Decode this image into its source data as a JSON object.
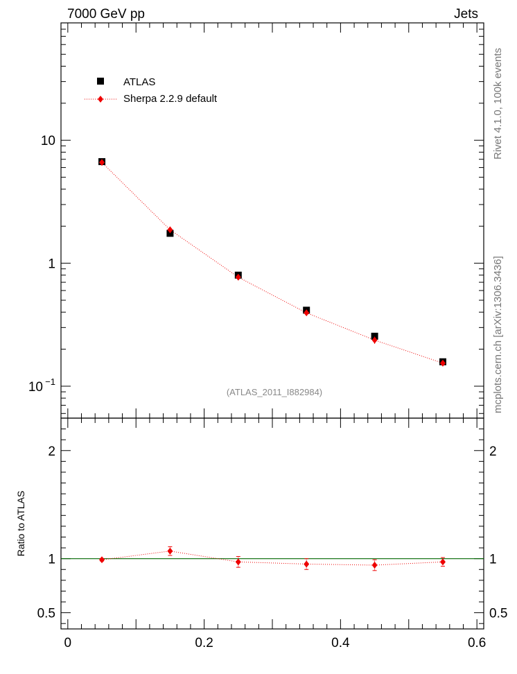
{
  "header": {
    "left": "7000 GeV pp",
    "right": "Jets"
  },
  "side_labels": {
    "rivet": "Rivet 4.1.0,  100k events",
    "mcplots": "mcplots.cern.ch [arXiv:1306.3436]"
  },
  "analysis_label": "(ATLAS_2011_I882984)",
  "colors": {
    "data": "#000000",
    "mc": "#ee0000",
    "refline": "#006600"
  },
  "chart_data": [
    {
      "type": "scatter",
      "panel": "main",
      "yscale": "log",
      "xlim": [
        -0.01,
        0.61
      ],
      "ylim": [
        0.055,
        90
      ],
      "x_ticks": [
        0,
        0.2,
        0.4,
        0.6
      ],
      "y_tick_labels": [
        {
          "value": 10,
          "label": "10"
        },
        {
          "value": 1,
          "label": "1"
        },
        {
          "value": 0.1,
          "label": "10",
          "sup": "−1"
        }
      ],
      "legend": {
        "position": "top-left",
        "entries": [
          "ATLAS",
          "Sherpa 2.2.9 default"
        ]
      },
      "series": [
        {
          "name": "ATLAS",
          "marker": "square",
          "x": [
            0.05,
            0.15,
            0.25,
            0.35,
            0.45,
            0.55
          ],
          "y": [
            6.7,
            1.75,
            0.8,
            0.415,
            0.255,
            0.158
          ]
        },
        {
          "name": "Sherpa 2.2.9 default",
          "marker": "diamond",
          "line": "dotted",
          "x": [
            0.05,
            0.15,
            0.25,
            0.35,
            0.45,
            0.55
          ],
          "y": [
            6.6,
            1.87,
            0.77,
            0.395,
            0.237,
            0.154
          ],
          "yerr": [
            0.07,
            0.04,
            0.035,
            0.02,
            0.016,
            0.006
          ]
        }
      ]
    },
    {
      "type": "scatter",
      "panel": "ratio",
      "ylabel": "Ratio to ATLAS",
      "xlim": [
        -0.01,
        0.61
      ],
      "ylim": [
        0.35,
        2.3
      ],
      "y_ticks": [
        {
          "value": 2,
          "label": "2"
        },
        {
          "value": 1,
          "label": "1"
        },
        {
          "value": 0.5,
          "label": "0.5"
        }
      ],
      "x_ticks": [
        {
          "value": 0,
          "label": "0"
        },
        {
          "value": 0.2,
          "label": "0.2"
        },
        {
          "value": 0.4,
          "label": "0.4"
        },
        {
          "value": 0.6,
          "label": "0.6"
        }
      ],
      "reference": 1.0,
      "series": [
        {
          "name": "Sherpa 2.2.9 default",
          "marker": "diamond",
          "line": "dotted",
          "x": [
            0.05,
            0.15,
            0.25,
            0.35,
            0.45,
            0.55
          ],
          "y": [
            0.99,
            1.07,
            0.97,
            0.95,
            0.94,
            0.97
          ],
          "yerr": [
            0.012,
            0.04,
            0.05,
            0.05,
            0.05,
            0.04
          ]
        }
      ]
    }
  ]
}
